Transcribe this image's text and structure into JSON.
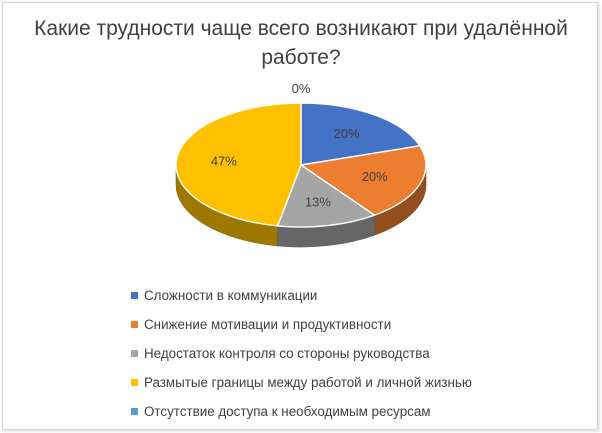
{
  "chart_data": {
    "type": "pie",
    "title": "Какие трудности чаще всего возникают при удалённой работе?",
    "labels": [
      "Сложности в коммуникации",
      "Снижение мотивации и продуктивности",
      "Недостаток контроля со стороны руководства",
      "Размытые границы между работой и личной жизнью",
      "Отсутствие доступа к необходимым ресурсам"
    ],
    "values": [
      20,
      20,
      13,
      47,
      0
    ],
    "data_labels": [
      "20%",
      "20%",
      "13%",
      "47%",
      "0%"
    ],
    "colors": [
      "#4472C4",
      "#ED7D31",
      "#A5A5A5",
      "#FFC000",
      "#5B9BD5"
    ],
    "legend_position": "bottom",
    "style": "3d-pie"
  }
}
